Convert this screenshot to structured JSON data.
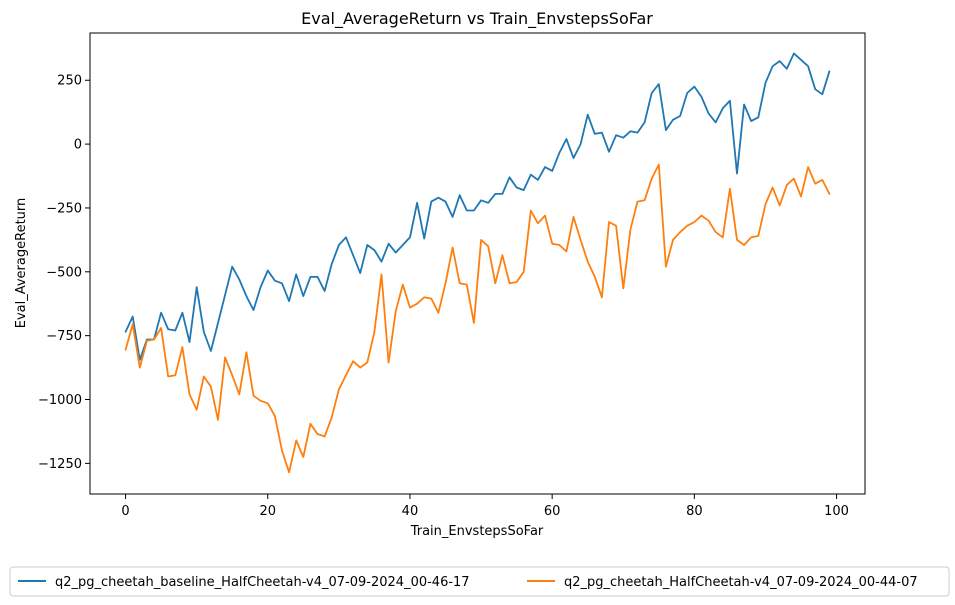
{
  "chart_data": {
    "type": "line",
    "title": "Eval_AverageReturn vs Train_EnvstepsSoFar",
    "xlabel": "Train_EnvstepsSoFar",
    "ylabel": "Eval_AverageReturn",
    "xlim": [
      -5,
      104
    ],
    "ylim": [
      -1370,
      435
    ],
    "xticks": [
      0,
      20,
      40,
      60,
      80,
      100
    ],
    "yticks": [
      -1250,
      -1000,
      -750,
      -500,
      -250,
      0,
      250
    ],
    "xtick_labels": [
      "0",
      "20",
      "40",
      "60",
      "80",
      "100"
    ],
    "ytick_labels": [
      "−1250",
      "−1000",
      "−750",
      "−500",
      "−250",
      "0",
      "250"
    ],
    "legend_position": "bottom-center",
    "grid": false,
    "series": [
      {
        "name": "q2_pg_cheetah_baseline_HalfCheetah-v4_07-09-2024_00-46-17",
        "color": "#1f77b4",
        "values": [
          -735,
          -675,
          -845,
          -765,
          -765,
          -660,
          -725,
          -730,
          -660,
          -775,
          -560,
          -735,
          -810,
          -700,
          -590,
          -480,
          -530,
          -595,
          -650,
          -560,
          -495,
          -535,
          -545,
          -615,
          -510,
          -595,
          -520,
          -520,
          -575,
          -470,
          -395,
          -365,
          -435,
          -505,
          -395,
          -415,
          -460,
          -390,
          -425,
          -395,
          -365,
          -230,
          -370,
          -225,
          -210,
          -225,
          -285,
          -200,
          -260,
          -260,
          -220,
          -230,
          -195,
          -195,
          -130,
          -170,
          -180,
          -120,
          -140,
          -90,
          -105,
          -35,
          20,
          -55,
          0,
          115,
          40,
          45,
          -30,
          35,
          25,
          50,
          45,
          85,
          200,
          235,
          55,
          95,
          110,
          200,
          225,
          185,
          120,
          85,
          140,
          170,
          -115,
          155,
          90,
          105,
          240,
          305,
          325,
          295,
          355,
          330,
          305,
          215,
          195,
          285
        ]
      },
      {
        "name": "q2_pg_cheetah_HalfCheetah-v4_07-09-2024_00-44-07",
        "color": "#ff7f0e",
        "values": [
          -805,
          -705,
          -875,
          -770,
          -765,
          -720,
          -910,
          -905,
          -795,
          -980,
          -1040,
          -910,
          -950,
          -1080,
          -835,
          -905,
          -980,
          -815,
          -985,
          -1005,
          -1015,
          -1065,
          -1200,
          -1285,
          -1160,
          -1225,
          -1095,
          -1135,
          -1145,
          -1070,
          -960,
          -905,
          -850,
          -875,
          -855,
          -735,
          -510,
          -855,
          -655,
          -550,
          -640,
          -625,
          -600,
          -605,
          -660,
          -545,
          -405,
          -545,
          -550,
          -700,
          -375,
          -400,
          -545,
          -435,
          -545,
          -540,
          -500,
          -260,
          -310,
          -280,
          -390,
          -395,
          -420,
          -285,
          -375,
          -460,
          -520,
          -600,
          -305,
          -320,
          -565,
          -335,
          -225,
          -220,
          -135,
          -80,
          -480,
          -375,
          -345,
          -320,
          -305,
          -280,
          -300,
          -345,
          -365,
          -175,
          -375,
          -395,
          -365,
          -360,
          -235,
          -170,
          -240,
          -160,
          -135,
          -205,
          -90,
          -155,
          -140,
          -195
        ]
      }
    ]
  }
}
